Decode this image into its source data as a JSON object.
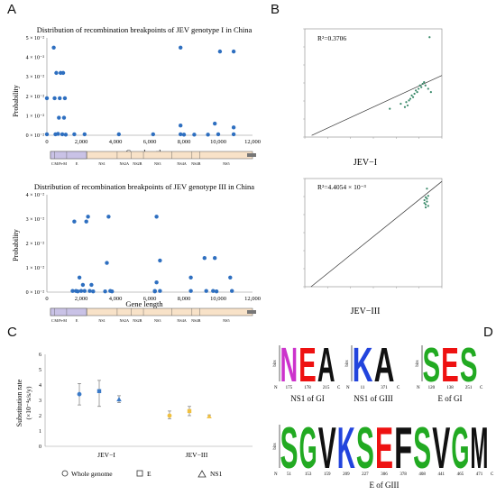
{
  "panels": {
    "A": {
      "letter": "A",
      "top": {
        "title": "Distribution of recombination breakpoints of JEV genotype I in China",
        "ylabel": "Probability",
        "xlabel": "Gene length",
        "yticks": [
          "0 × 10⁻²",
          "1 × 10⁻²",
          "2 × 10⁻²",
          "3 × 10⁻²",
          "4 × 10⁻²",
          "5 × 10⁻²"
        ],
        "xticks": [
          "0",
          "2,000",
          "4,000",
          "6,000",
          "8,000",
          "10,000",
          "12,000"
        ],
        "points": [
          [
            0,
            0.019
          ],
          [
            0,
            0.0005
          ],
          [
            400,
            0.045
          ],
          [
            450,
            0.019
          ],
          [
            500,
            0.0005
          ],
          [
            550,
            0.032
          ],
          [
            650,
            0.0007
          ],
          [
            700,
            0.009
          ],
          [
            750,
            0.019
          ],
          [
            800,
            0.032
          ],
          [
            900,
            0.0005
          ],
          [
            950,
            0.032
          ],
          [
            1000,
            0.009
          ],
          [
            1050,
            0.019
          ],
          [
            1100,
            0.0003
          ],
          [
            1600,
            0.0005
          ],
          [
            2200,
            0.0005
          ],
          [
            4200,
            0.0005
          ],
          [
            6200,
            0.0005
          ],
          [
            7800,
            0.045
          ],
          [
            7800,
            0.005
          ],
          [
            7800,
            0.0005
          ],
          [
            8000,
            0.0003
          ],
          [
            8600,
            0.0003
          ],
          [
            9400,
            0.0003
          ],
          [
            9800,
            0.006
          ],
          [
            10000,
            0.0005
          ],
          [
            10100,
            0.043
          ],
          [
            10900,
            0.043
          ],
          [
            10900,
            0.004
          ],
          [
            10900,
            0.0005
          ]
        ],
        "genome": [
          "C",
          "M/Pr-M",
          "E",
          "NS1",
          "NS2A",
          "NS2B",
          "NS3",
          "NS4A",
          "NS4B",
          "NS5"
        ]
      },
      "bottom": {
        "title": "Distribution of recombination breakpoints of JEV genotype III in China",
        "ylabel": "Probability",
        "xlabel": "Gene length",
        "yticks": [
          "0 × 10⁻²",
          "1 × 10⁻²",
          "2 × 10⁻²",
          "3 × 10⁻²",
          "4 × 10⁻²"
        ],
        "xticks": [
          "0",
          "2,000",
          "4,000",
          "6,000",
          "8,000",
          "10,000",
          "12,000"
        ],
        "points": [
          [
            1500,
            0.0005
          ],
          [
            1600,
            0.029
          ],
          [
            1700,
            0.0005
          ],
          [
            1800,
            0.0003
          ],
          [
            1900,
            0.006
          ],
          [
            2000,
            0.0005
          ],
          [
            2100,
            0.003
          ],
          [
            2200,
            0.0005
          ],
          [
            2300,
            0.029
          ],
          [
            2400,
            0.031
          ],
          [
            2500,
            0.0005
          ],
          [
            2600,
            0.003
          ],
          [
            2700,
            0.0003
          ],
          [
            3400,
            0.0003
          ],
          [
            3500,
            0.012
          ],
          [
            3600,
            0.031
          ],
          [
            3700,
            0.0005
          ],
          [
            3800,
            0.0003
          ],
          [
            6300,
            0.0003
          ],
          [
            6300,
            0.0005
          ],
          [
            6400,
            0.031
          ],
          [
            6400,
            0.004
          ],
          [
            6600,
            0.013
          ],
          [
            6600,
            0.0005
          ],
          [
            8400,
            0.006
          ],
          [
            8400,
            0.0005
          ],
          [
            9200,
            0.014
          ],
          [
            9300,
            0.0005
          ],
          [
            9700,
            0.0005
          ],
          [
            9800,
            0.014
          ],
          [
            9900,
            0.0003
          ],
          [
            10700,
            0.006
          ],
          [
            10800,
            0.0005
          ]
        ],
        "genome": [
          "C",
          "M/Pr-M",
          "E",
          "NS1",
          "NS2A",
          "NS2B",
          "NS3",
          "NS4A",
          "NS4B",
          "NS5"
        ]
      }
    },
    "B": {
      "letter": "B",
      "top": {
        "r2": "R²=0.3706",
        "caption": "JEV−I",
        "points": [
          [
            2000,
            0.0045
          ],
          [
            2003,
            0.0043
          ],
          [
            2004,
            0.0046
          ],
          [
            2005,
            0.0044
          ],
          [
            2006,
            0.0047
          ],
          [
            2007,
            0.0048
          ],
          [
            2008,
            0.005
          ],
          [
            2009,
            0.0049
          ],
          [
            2010,
            0.0051
          ],
          [
            2011,
            0.0053
          ],
          [
            2012,
            0.0052
          ],
          [
            2013,
            0.0054
          ],
          [
            2014,
            0.0056
          ],
          [
            2015,
            0.0055
          ],
          [
            2016,
            0.0057
          ],
          [
            2017,
            0.0058
          ],
          [
            2018,
            0.0056
          ],
          [
            2020,
            0.0054
          ],
          [
            2022,
            0.0052
          ],
          [
            1992,
            0.0042
          ],
          [
            2021,
            0.0085
          ]
        ]
      },
      "bottom": {
        "r2": "R²=4.4054 × 10⁻³",
        "caption": "JEV−III",
        "points": [
          [
            2016,
            0.006
          ],
          [
            2016,
            0.0058
          ],
          [
            2017,
            0.0062
          ],
          [
            2017,
            0.0057
          ],
          [
            2018,
            0.0061
          ],
          [
            2018,
            0.0059
          ],
          [
            2019,
            0.0063
          ],
          [
            2019,
            0.0056
          ],
          [
            2018,
            0.0068
          ],
          [
            2017,
            0.0055
          ]
        ]
      }
    },
    "C": {
      "letter": "C",
      "ylabel": "Substitution rate",
      "ylabel2": "(×10⁻⁴s/s/y)",
      "yticks": [
        "0",
        "1",
        "2",
        "3",
        "4",
        "5",
        "6"
      ],
      "groups": [
        "JEV−I",
        "JEV−III"
      ],
      "legend": [
        "Whole genome",
        "E",
        "NS1"
      ],
      "colors": {
        "jev1": "#3b7ac8",
        "jev3": "#f0c040"
      },
      "chart_data": {
        "type": "scatter",
        "categories": [
          "JEV−I",
          "JEV−III"
        ],
        "series": [
          {
            "name": "Whole genome",
            "values": [
              {
                "mean": 3.4,
                "lo": 2.7,
                "hi": 4.1
              },
              {
                "mean": 2.0,
                "lo": 1.8,
                "hi": 2.3
              }
            ]
          },
          {
            "name": "E",
            "values": [
              {
                "mean": 3.6,
                "lo": 2.6,
                "hi": 4.3
              },
              {
                "mean": 2.3,
                "lo": 2.0,
                "hi": 2.6
              }
            ]
          },
          {
            "name": "NS1",
            "values": [
              {
                "mean": 3.05,
                "lo": 2.85,
                "hi": 3.3
              },
              {
                "mean": 1.95,
                "lo": 1.9,
                "hi": 2.05
              }
            ]
          }
        ],
        "ylim": [
          0,
          6
        ]
      }
    },
    "D": {
      "letter": "D",
      "logos": [
        {
          "caption": "NS1 of GI",
          "letters": [
            "N",
            "E",
            "A"
          ],
          "positions": [
            "175",
            "178",
            "215"
          ]
        },
        {
          "caption": "NS1 of GIII",
          "letters": [
            "K",
            "A"
          ],
          "positions": [
            "11",
            "371"
          ]
        },
        {
          "caption": "E of GI",
          "letters": [
            "S",
            "E",
            "S"
          ],
          "positions": [
            "120",
            "138",
            "251"
          ]
        },
        {
          "caption": "E of GIII",
          "letters": [
            "S",
            "G",
            "V",
            "K",
            "S",
            "E",
            "F",
            "S",
            "V",
            "G",
            "M"
          ],
          "positions": [
            "51",
            "153",
            "159",
            "209",
            "227",
            "306",
            "378",
            "408",
            "441",
            "465",
            "471"
          ]
        }
      ],
      "axis_label": "bits"
    }
  }
}
